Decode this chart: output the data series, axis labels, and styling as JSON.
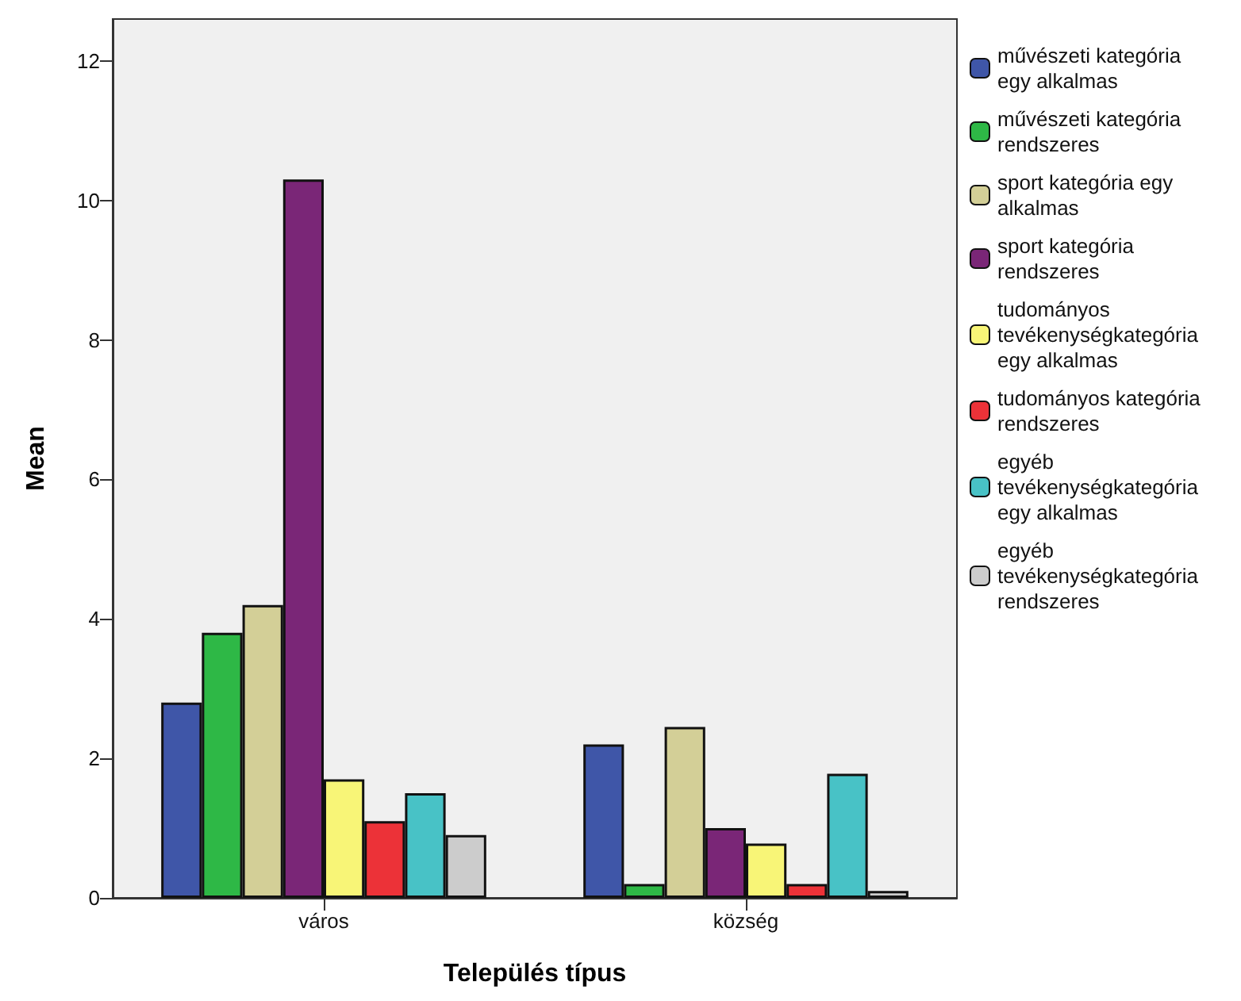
{
  "chart_data": {
    "type": "bar",
    "xlabel": "Település típus",
    "ylabel": "Mean",
    "categories": [
      "város",
      "község"
    ],
    "series": [
      {
        "name": "művészeti kategória egy alkalmas",
        "color": "#3f56a8",
        "values": [
          2.8,
          2.2
        ]
      },
      {
        "name": "művészeti kategória rendszeres",
        "color": "#2eb846",
        "values": [
          3.8,
          0.2
        ]
      },
      {
        "name": "sport kategória egy alkalmas",
        "color": "#d3cf97",
        "values": [
          4.2,
          2.45
        ]
      },
      {
        "name": "sport kategória rendszeres",
        "color": "#7a2677",
        "values": [
          10.3,
          1.0
        ]
      },
      {
        "name": "tudományos tevékenységkategória egy alkalmas",
        "color": "#f8f577",
        "values": [
          1.7,
          0.78
        ]
      },
      {
        "name": "tudományos kategória rendszeres",
        "color": "#ec3238",
        "values": [
          1.1,
          0.2
        ]
      },
      {
        "name": "egyéb tevékenységkategória egy alkalmas",
        "color": "#48c2c6",
        "values": [
          1.5,
          1.78
        ]
      },
      {
        "name": "egyéb tevékenységkategória rendszeres",
        "color": "#cccccc",
        "values": [
          0.9,
          0.1
        ]
      }
    ],
    "ylim": [
      0,
      12.6
    ],
    "yticks": [
      0,
      2,
      4,
      6,
      8,
      10,
      12
    ],
    "grid": false,
    "legend": "right"
  }
}
